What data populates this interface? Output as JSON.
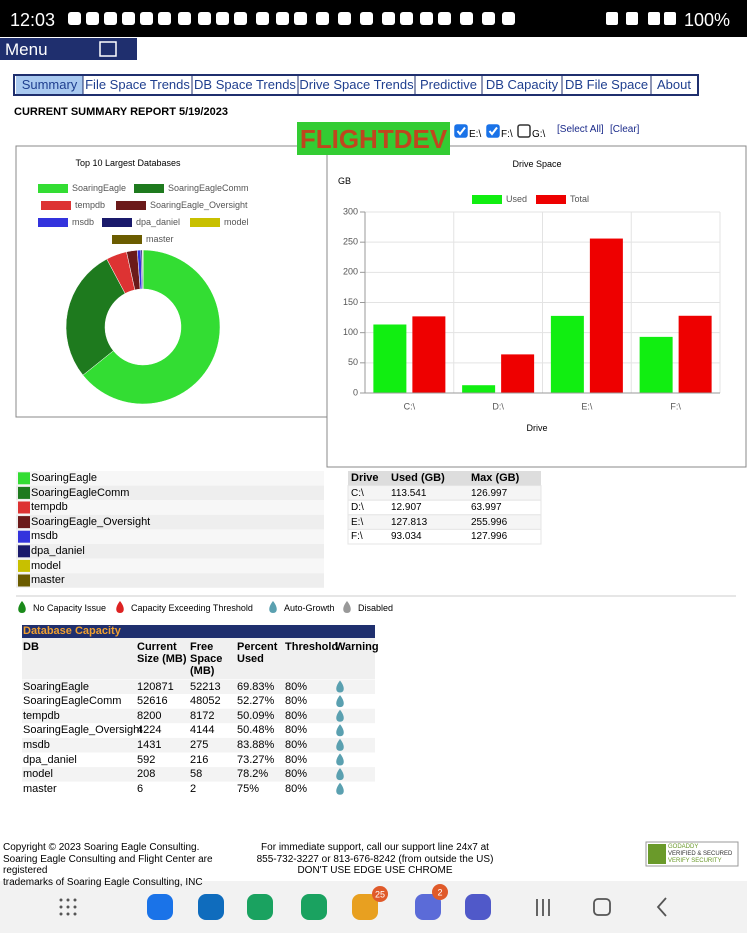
{
  "status_bar": {
    "time": "12:03",
    "battery": "100%"
  },
  "menu": {
    "label": "Menu"
  },
  "tabs": [
    "Summary",
    "File Space Trends",
    "DB Space Trends",
    "Drive Space Trends",
    "Predictive",
    "DB Capacity",
    "DB File Space",
    "About"
  ],
  "report_title": "CURRENT SUMMARY REPORT 5/19/2023",
  "server": "FLIGHTDEV",
  "drive_filter": {
    "drives": [
      {
        "label": "E:\\",
        "checked": true
      },
      {
        "label": "F:\\",
        "checked": true
      },
      {
        "label": "G:\\",
        "checked": false
      }
    ],
    "select_all": "[Select All]",
    "clear": "[Clear]"
  },
  "chart_data": [
    {
      "type": "pie",
      "title": "Top 10 Largest Databases",
      "categories": [
        "SoaringEagle",
        "SoaringEagleComm",
        "tempdb",
        "SoaringEagle_Oversight",
        "msdb",
        "dpa_daniel",
        "model",
        "master"
      ],
      "values": [
        120871,
        52616,
        8200,
        4224,
        1431,
        592,
        208,
        6
      ],
      "colors": [
        "#33dd33",
        "#1e7a1e",
        "#dd3333",
        "#6b1a1a",
        "#3333dd",
        "#1a1a6b",
        "#c8c000",
        "#6b5c00"
      ]
    },
    {
      "type": "bar",
      "title": "Drive Space",
      "ylabel": "GB",
      "xlabel": "Drive",
      "categories": [
        "C:\\",
        "D:\\",
        "E:\\",
        "F:\\"
      ],
      "series": [
        {
          "name": "Used",
          "color": "#11ee11",
          "values": [
            113.541,
            12.907,
            127.813,
            93.034
          ]
        },
        {
          "name": "Total",
          "color": "#ee0000",
          "values": [
            126.997,
            63.997,
            255.996,
            127.996
          ]
        }
      ],
      "ylim": [
        0,
        300
      ],
      "yticks": [
        0,
        50,
        100,
        150,
        200,
        250,
        300
      ],
      "grid": true
    }
  ],
  "drive_table": {
    "headers": [
      "Drive",
      "Used (GB)",
      "Max (GB)"
    ]
  },
  "capacity_legend": [
    {
      "label": "No Capacity Issue",
      "color": "#1a8a1a"
    },
    {
      "label": "Capacity Exceeding Threshold",
      "color": "#dd2222"
    },
    {
      "label": "Auto-Growth",
      "color": "#5aa0b0"
    },
    {
      "label": "Disabled",
      "color": "#999999"
    }
  ],
  "db_capacity": {
    "title": "Database Capacity",
    "headers": [
      "DB",
      "Current Size (MB)",
      "Free Space (MB)",
      "Percent Used",
      "Threshold",
      "Warning"
    ],
    "rows": [
      {
        "free": 52213,
        "percent": "69.83%",
        "threshold": "80%"
      },
      {
        "free": 48052,
        "percent": "52.27%",
        "threshold": "80%"
      },
      {
        "free": 8172,
        "percent": "50.09%",
        "threshold": "80%"
      },
      {
        "free": 4144,
        "percent": "50.48%",
        "threshold": "80%"
      },
      {
        "free": 275,
        "percent": "83.88%",
        "threshold": "80%"
      },
      {
        "free": 216,
        "percent": "73.27%",
        "threshold": "80%"
      },
      {
        "free": 58,
        "percent": "78.2%",
        "threshold": "80%"
      },
      {
        "free": 2,
        "percent": "75%",
        "threshold": "80%"
      }
    ]
  },
  "footer": {
    "left": [
      "Copyright © 2023 Soaring Eagle Consulting.",
      "Soaring Eagle Consulting and Flight Center are",
      "registered",
      "trademarks of Soaring Eagle Consulting, INC"
    ],
    "center": [
      "For immediate support, call our support line 24x7 at",
      "855-732-3227 or 813-676-8242 (from outside the US)",
      "DON'T USE EDGE USE CHROME"
    ],
    "badge": [
      "GODADDY",
      "VERIFIED & SECURED",
      "VERIFY SECURITY"
    ]
  },
  "nav_bar": {
    "badges": [
      "25",
      "2"
    ]
  }
}
